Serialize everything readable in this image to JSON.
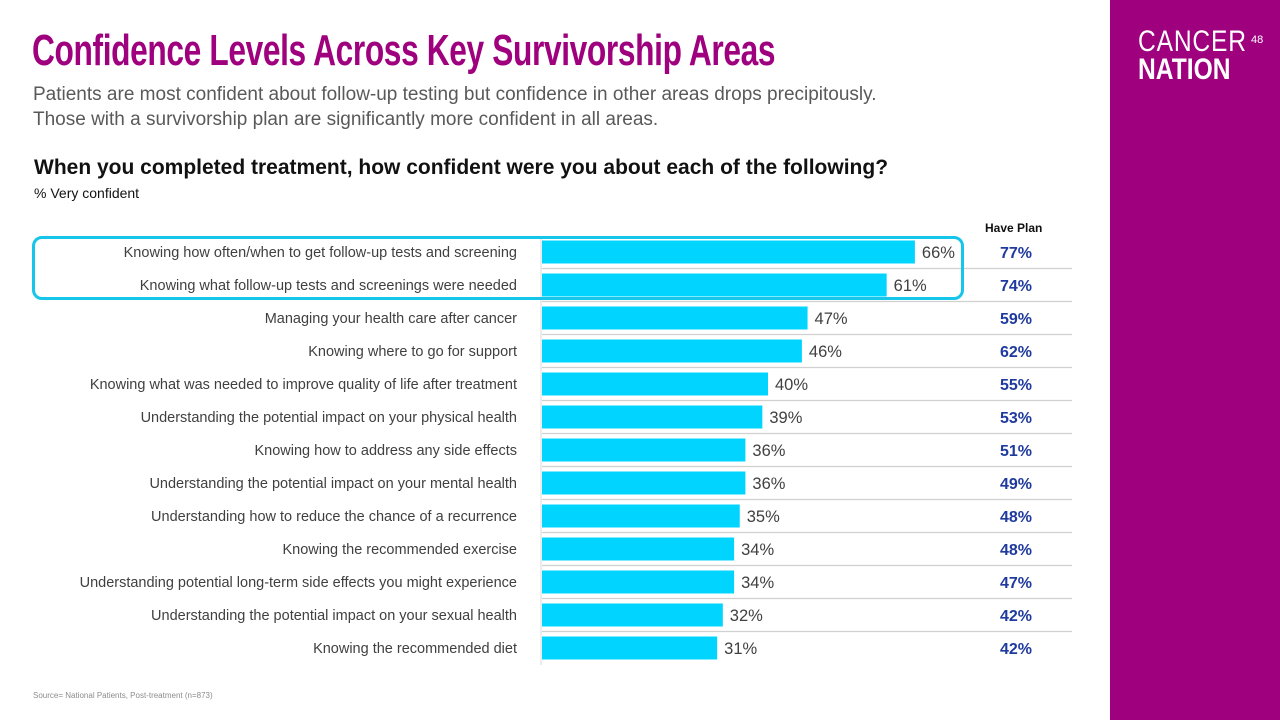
{
  "title": "Confidence Levels Across Key Survivorship Areas",
  "subtitle": "Patients are most confident about follow-up testing but confidence in other areas drops precipitously. Those with a survivorship plan are significantly more confident in all areas.",
  "question": "When you completed treatment, how confident were you about each of the following?",
  "measure": "% Very confident",
  "have_plan_header": "Have Plan",
  "source": "Source= National Patients, Post-treatment (n=873)",
  "page_number": "48",
  "logo": {
    "line1": "CANCER",
    "line2": "NATION"
  },
  "colors": {
    "brand": "#9E007E",
    "bar": "#00D4FF",
    "have_plan_text": "#1F3A9E",
    "highlight": "#16C6EA"
  },
  "chart_data": {
    "type": "bar",
    "orientation": "horizontal",
    "categories": [
      "Knowing how often/when to get follow-up tests and screening",
      "Knowing what follow-up tests and screenings were needed",
      "Managing your health care after cancer",
      "Knowing where to go for support",
      "Knowing what was needed to improve quality of life after treatment",
      "Understanding the potential impact on your physical health",
      "Knowing how to address any side effects",
      "Understanding the potential impact on your mental health",
      "Understanding how to reduce the chance of a recurrence",
      "Knowing the recommended exercise",
      "Understanding potential long-term side effects you might experience",
      "Understanding the potential impact on your sexual health",
      "Knowing the recommended diet"
    ],
    "values": [
      66,
      61,
      47,
      46,
      40,
      39,
      36,
      36,
      35,
      34,
      34,
      32,
      31
    ],
    "value_labels": [
      "66%",
      "61%",
      "47%",
      "46%",
      "40%",
      "39%",
      "36%",
      "36%",
      "35%",
      "34%",
      "34%",
      "32%",
      "31%"
    ],
    "have_plan": [
      "77%",
      "74%",
      "59%",
      "62%",
      "55%",
      "53%",
      "51%",
      "49%",
      "48%",
      "48%",
      "47%",
      "42%",
      "42%"
    ],
    "xlim": [
      0,
      100
    ],
    "highlighted_rows": [
      0,
      1
    ]
  }
}
